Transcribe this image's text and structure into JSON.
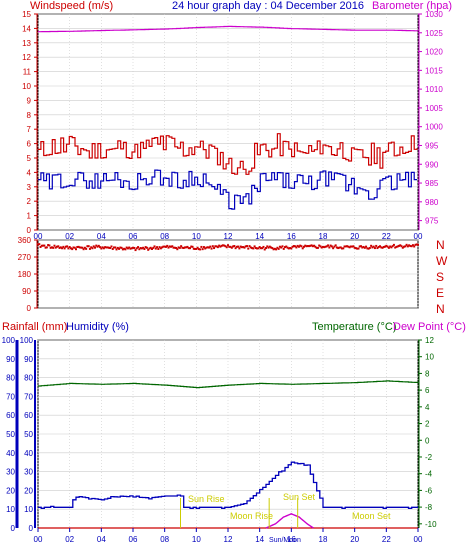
{
  "header": {
    "title": "24 hour graph day : 04 December 2016",
    "left_label": "Windspeed (m/s)",
    "right_label": "Barometer (hpa)"
  },
  "hour_ticks": [
    "00",
    "02",
    "04",
    "06",
    "08",
    "10",
    "12",
    "14",
    "16",
    "18",
    "20",
    "22",
    "00"
  ],
  "direction_labels": [
    "N",
    "W",
    "S",
    "E",
    "N"
  ],
  "colors": {
    "wind": "#cc0000",
    "gust": "#0000bb",
    "baro": "#cc00cc",
    "direction": "#cc0000",
    "rain": "#cc0000",
    "humidity": "#0000bb",
    "temperature": "#006600",
    "dewpoint": "#cc00cc",
    "sun_label": "#cccc00",
    "bottom_time_tick": "#0000bb",
    "grid": "#cccccc",
    "frame": "#000000"
  },
  "lower_labels": {
    "rainfall": "Rainfall (mm)",
    "humidity": "Humidity (%)",
    "temperature": "Temperature (°C)",
    "dewpoint": "Dew Point (°C)",
    "sun_rise": "Sun Rise",
    "sun_set": "Sun Set",
    "moon_rise": "Moon Rise",
    "moon_set": "Moon Set",
    "transit_label": "Sun/Moon"
  },
  "bottom_hour_ticks": [
    "00",
    "02",
    "04",
    "06",
    "08",
    "10",
    "12",
    "14",
    "16",
    "18",
    "20",
    "22",
    "00"
  ],
  "chart_data": [
    {
      "type": "line",
      "name": "wind-barometer",
      "x_unit": "hours",
      "x_range": [
        0,
        24
      ],
      "left_axis": {
        "label": "Windspeed (m/s)",
        "ticks": [
          0,
          1,
          2,
          3,
          4,
          5,
          6,
          7,
          8,
          9,
          10,
          11,
          12,
          13,
          14,
          15
        ],
        "range": [
          0,
          15
        ]
      },
      "right_axis": {
        "label": "Barometer (hpa)",
        "ticks": [
          975,
          980,
          985,
          990,
          995,
          1000,
          1005,
          1010,
          1015,
          1020,
          1025,
          1030
        ],
        "range": [
          972.5,
          1030
        ]
      },
      "series": [
        {
          "name": "Windspeed",
          "axis": "left",
          "x": [
            0,
            1,
            2,
            3,
            4,
            5,
            6,
            7,
            8,
            9,
            10,
            11,
            12,
            13,
            14,
            15,
            16,
            17,
            18,
            19,
            20,
            21,
            22,
            23,
            24
          ],
          "values": [
            5.6,
            5.8,
            6.0,
            5.5,
            5.5,
            5.7,
            5.4,
            5.8,
            6.1,
            5.6,
            5.8,
            5.3,
            4.5,
            4.2,
            5.4,
            5.7,
            5.6,
            5.3,
            5.9,
            5.6,
            5.1,
            5.0,
            5.5,
            5.8,
            6.2
          ]
        },
        {
          "name": "Gust",
          "axis": "left",
          "x": [
            0,
            1,
            2,
            3,
            4,
            5,
            6,
            7,
            8,
            9,
            10,
            11,
            12,
            13,
            14,
            15,
            16,
            17,
            18,
            19,
            20,
            21,
            22,
            23,
            24
          ],
          "values": [
            3.5,
            3.3,
            3.6,
            3.4,
            3.4,
            3.5,
            3.3,
            3.7,
            3.6,
            3.4,
            3.7,
            3.0,
            2.0,
            1.8,
            3.4,
            3.5,
            3.4,
            3.2,
            3.6,
            3.4,
            3.0,
            2.6,
            3.2,
            3.5,
            3.5
          ]
        },
        {
          "name": "Barometer",
          "axis": "right",
          "x": [
            0,
            2,
            4,
            6,
            8,
            10,
            12,
            14,
            16,
            18,
            20,
            22,
            24
          ],
          "values": [
            1025.3,
            1025.4,
            1025.6,
            1025.8,
            1026.0,
            1026.4,
            1026.7,
            1026.5,
            1026.1,
            1025.9,
            1025.7,
            1025.7,
            1025.5
          ]
        }
      ]
    },
    {
      "type": "scatter",
      "name": "wind-direction",
      "x_unit": "hours",
      "x_range": [
        0,
        24
      ],
      "y_axis": {
        "ticks": [
          0,
          90,
          180,
          270,
          360
        ],
        "range": [
          0,
          360
        ]
      },
      "series": [
        {
          "name": "Direction",
          "x": [
            0,
            2,
            4,
            6,
            8,
            10,
            12,
            14,
            16,
            18,
            20,
            22,
            24
          ],
          "values": [
            330,
            318,
            322,
            312,
            322,
            318,
            325,
            318,
            320,
            325,
            320,
            326,
            330
          ]
        }
      ]
    },
    {
      "type": "line",
      "name": "rain-humidity-temperature",
      "x_unit": "hours",
      "x_range": [
        0,
        24
      ],
      "left_axis": {
        "ticks": [
          0,
          10,
          20,
          30,
          40,
          50,
          60,
          70,
          80,
          90,
          100
        ],
        "range": [
          0,
          100
        ]
      },
      "right_axis": {
        "ticks": [
          -10,
          -8,
          -6,
          -4,
          -2,
          0,
          2,
          4,
          6,
          8,
          10,
          12
        ],
        "range": [
          -10.5,
          12
        ]
      },
      "series": [
        {
          "name": "Rainfall",
          "axis": "left",
          "x": [
            0,
            24
          ],
          "values": [
            0,
            0
          ]
        },
        {
          "name": "Humidity",
          "axis": "left",
          "x": [
            0,
            2,
            2.3,
            4,
            5,
            7,
            8,
            9,
            9.2,
            10,
            12,
            13,
            14,
            15,
            16,
            17,
            18,
            20,
            22,
            24
          ],
          "values": [
            11,
            11,
            17,
            15,
            17,
            16,
            17,
            17,
            11,
            11,
            11,
            13,
            20,
            28,
            35,
            33,
            11,
            11,
            11,
            11
          ]
        },
        {
          "name": "Temperature",
          "axis": "right",
          "x": [
            0,
            2,
            4,
            6,
            8,
            10,
            12,
            14,
            16,
            18,
            20,
            22,
            24
          ],
          "values": [
            6.5,
            6.8,
            6.7,
            6.8,
            6.6,
            6.3,
            6.6,
            6.8,
            6.7,
            6.8,
            6.9,
            7.1,
            6.9
          ]
        },
        {
          "name": "Dew Point",
          "axis": "right",
          "x": [
            14.4,
            15,
            15.5,
            16,
            16.5,
            17,
            17.4
          ],
          "values": [
            -10.5,
            -10,
            -9.2,
            -8.8,
            -9.2,
            -10,
            -10.5
          ]
        }
      ]
    }
  ]
}
